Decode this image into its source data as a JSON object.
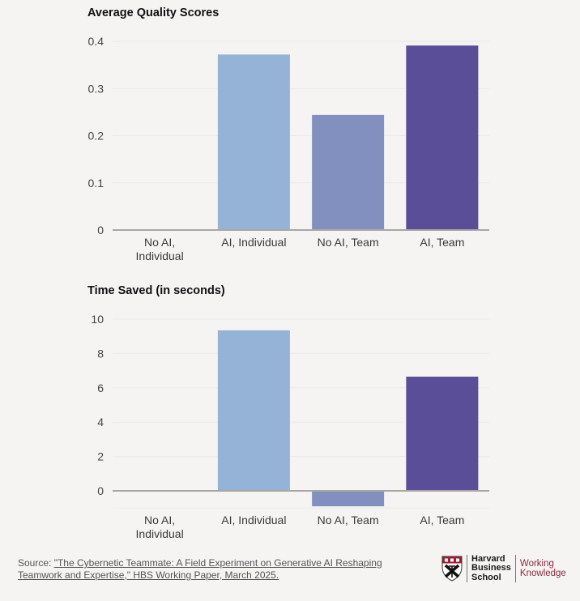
{
  "chart_data": [
    {
      "type": "bar",
      "title": "Average Quality Scores",
      "categories": [
        "No AI,\nIndividual",
        "AI, Individual",
        "No AI, Team",
        "AI, Team"
      ],
      "values": [
        0,
        0.372,
        0.244,
        0.391
      ],
      "colors": [
        "#95b2d7",
        "#95b2d7",
        "#8290c0",
        "#5b4e99"
      ],
      "yticks": [
        0,
        0.1,
        0.2,
        0.3,
        0.4
      ],
      "ytick_labels": [
        "0",
        "0.1",
        "0.2",
        "0.3",
        "0.4"
      ],
      "ylim": [
        0,
        0.4
      ],
      "xlabel": "",
      "ylabel": "",
      "grid": true
    },
    {
      "type": "bar",
      "title": "Time Saved (in seconds)",
      "categories": [
        "No AI,\nIndividual",
        "AI, Individual",
        "No AI, Team",
        "AI, Team"
      ],
      "values": [
        0,
        9.35,
        -0.9,
        6.65
      ],
      "colors": [
        "#95b2d7",
        "#95b2d7",
        "#8290c0",
        "#5b4e99"
      ],
      "yticks": [
        0,
        2,
        4,
        6,
        8,
        10
      ],
      "ytick_labels": [
        "0",
        "2",
        "4",
        "6",
        "8",
        "10"
      ],
      "ylim": [
        -1,
        10
      ],
      "xlabel": "",
      "ylabel": "",
      "grid": true
    }
  ],
  "footer": {
    "source_prefix": "Source: ",
    "source_link": "\"The Cybernetic Teammate: A Field Experiment on Generative AI Reshaping Teamwork and Expertise,\" HBS Working Paper, March 2025.",
    "logo_line1": "Harvard",
    "logo_line2": "Business",
    "logo_line3": "School",
    "brand_line1": "Working",
    "brand_line2": "Knowledge",
    "brand_color": "#8c2a45"
  }
}
